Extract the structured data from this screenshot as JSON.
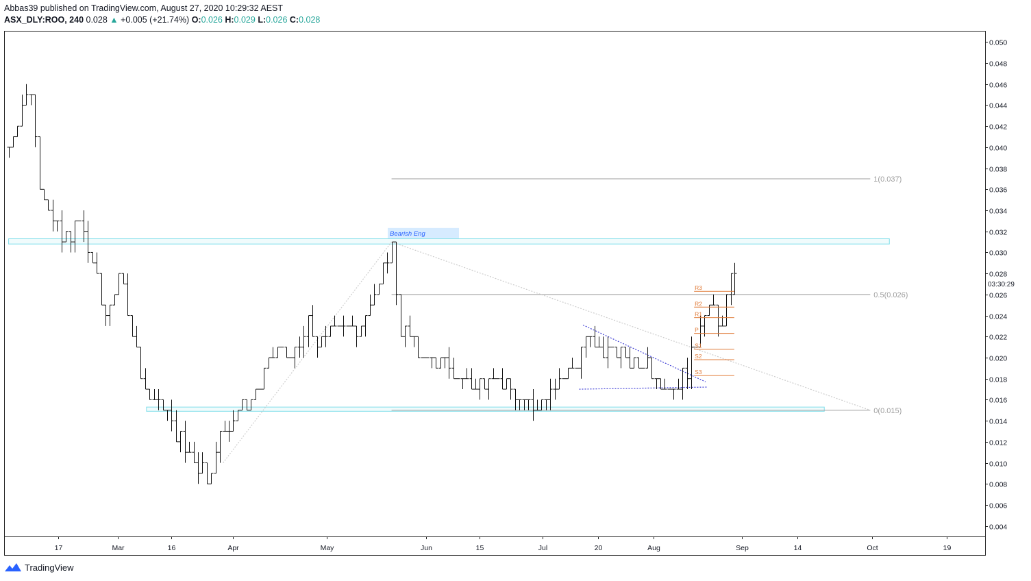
{
  "header": {
    "publisher_line": "Abbas39 published on TradingView.com, August 27, 2020 10:29:32 AEST",
    "symbol": "ASX_DLY:ROO, 240",
    "last": "0.028",
    "up_arrow": "▲",
    "change": "+0.005 (+21.74%)",
    "o_label": "O:",
    "o_value": "0.026",
    "h_label": "H:",
    "h_value": "0.029",
    "l_label": "L:",
    "l_value": "0.026",
    "c_label": "C:",
    "c_value": "0.028"
  },
  "footer": {
    "brand": "TradingView",
    "logo_icon": "tradingview-logo-icon"
  },
  "chart_data": {
    "type": "ohlc",
    "title": "ASX_DLY:ROO, 240",
    "ylim": [
      0.003,
      0.051
    ],
    "y_ticks": [
      "0.050",
      "0.048",
      "0.046",
      "0.044",
      "0.042",
      "0.040",
      "0.038",
      "0.036",
      "0.034",
      "0.032",
      "0.030",
      "0.028",
      "0.026",
      "0.024",
      "0.022",
      "0.020",
      "0.018",
      "0.016",
      "0.014",
      "0.012",
      "0.010",
      "0.008",
      "0.006",
      "0.004"
    ],
    "x_ticks": [
      "17",
      "Mar",
      "16",
      "Apr",
      "May",
      "Jun",
      "15",
      "Jul",
      "20",
      "Aug",
      "Sep",
      "14",
      "Oct",
      "19"
    ],
    "countdown": "03:30:29",
    "last_price": 0.028,
    "price_path": [
      [
        0.0,
        0.04
      ],
      [
        0.6,
        0.044
      ],
      [
        1.2,
        0.046
      ],
      [
        1.5,
        0.037
      ],
      [
        2.1,
        0.034
      ],
      [
        2.8,
        0.031
      ],
      [
        3.7,
        0.033
      ],
      [
        4.2,
        0.03
      ],
      [
        5.0,
        0.024
      ],
      [
        5.8,
        0.028
      ],
      [
        6.6,
        0.021
      ],
      [
        7.3,
        0.016
      ],
      [
        8.1,
        0.015
      ],
      [
        9.0,
        0.012
      ],
      [
        9.7,
        0.01
      ],
      [
        10.4,
        0.009
      ],
      [
        11.2,
        0.013
      ],
      [
        11.8,
        0.015
      ],
      [
        12.5,
        0.016
      ],
      [
        13.3,
        0.018
      ],
      [
        14.1,
        0.021
      ],
      [
        14.9,
        0.02
      ],
      [
        15.6,
        0.023
      ],
      [
        16.3,
        0.021
      ],
      [
        17.2,
        0.024
      ],
      [
        18.0,
        0.022
      ],
      [
        18.8,
        0.025
      ],
      [
        19.4,
        0.027
      ],
      [
        20.0,
        0.031
      ],
      [
        20.4,
        0.023
      ],
      [
        21.1,
        0.021
      ],
      [
        21.9,
        0.02
      ],
      [
        22.8,
        0.019
      ],
      [
        23.6,
        0.018
      ],
      [
        24.4,
        0.017
      ],
      [
        25.2,
        0.019
      ],
      [
        25.9,
        0.017
      ],
      [
        26.6,
        0.016
      ],
      [
        27.3,
        0.015
      ],
      [
        28.1,
        0.017
      ],
      [
        28.8,
        0.018
      ],
      [
        29.5,
        0.019
      ],
      [
        30.2,
        0.022
      ],
      [
        30.9,
        0.02
      ],
      [
        31.7,
        0.021
      ],
      [
        32.5,
        0.019
      ],
      [
        33.2,
        0.02
      ],
      [
        33.9,
        0.018
      ],
      [
        34.5,
        0.017
      ],
      [
        35.1,
        0.018
      ],
      [
        35.7,
        0.02
      ],
      [
        36.2,
        0.024
      ],
      [
        36.7,
        0.025
      ],
      [
        37.1,
        0.022
      ],
      [
        37.5,
        0.026
      ],
      [
        37.8,
        0.028
      ]
    ],
    "bar_spacing": 0.23,
    "candle_start": 0.0,
    "candle_end": 37.8,
    "horizontal_zones": [
      {
        "name": "resistance-zone",
        "from": 0.0,
        "to": 46.0,
        "low": 0.0308,
        "high": 0.0313,
        "color": "#80deea"
      },
      {
        "name": "support-zone",
        "from": 7.2,
        "to": 42.6,
        "low": 0.0149,
        "high": 0.0153,
        "color": "#80deea"
      }
    ],
    "fib": {
      "from": 20.0,
      "to": 45.0,
      "color": "#9e9e9e",
      "levels": [
        {
          "label": "1(0.037)",
          "value": 0.037
        },
        {
          "label": "0.5(0.026)",
          "value": 0.026
        },
        {
          "label": "0(0.015)",
          "value": 0.015
        }
      ]
    },
    "pivots": {
      "from": 35.8,
      "to": 37.9,
      "color": "#e07b39",
      "levels": [
        {
          "label": "R3",
          "value": 0.0263
        },
        {
          "label": "R2",
          "value": 0.0248
        },
        {
          "label": "R1",
          "value": 0.0238
        },
        {
          "label": "P",
          "value": 0.0223
        },
        {
          "label": "S1",
          "value": 0.0208
        },
        {
          "label": "S2",
          "value": 0.0198
        },
        {
          "label": "S3",
          "value": 0.0183
        }
      ]
    },
    "annotations": [
      {
        "label": "Bearish Eng",
        "x": 19.8,
        "y": 0.0318,
        "color": "#2962ff",
        "bg": "#d6ebff"
      }
    ],
    "trendlines": [
      {
        "name": "triangle-upper",
        "from": [
          30.0,
          0.0231
        ],
        "to": [
          36.4,
          0.0177
        ],
        "color": "#3f3fd6",
        "dotted": true
      },
      {
        "name": "triangle-lower",
        "from": [
          29.8,
          0.017
        ],
        "to": [
          36.5,
          0.0172
        ],
        "color": "#3f3fd6",
        "dotted": true
      },
      {
        "name": "fib-diagonal-up",
        "from": [
          11.2,
          0.01
        ],
        "to": [
          20.0,
          0.031
        ],
        "color": "#cccccc",
        "dotted": true
      },
      {
        "name": "fib-diagonal-down",
        "from": [
          20.0,
          0.031
        ],
        "to": [
          45.0,
          0.015
        ],
        "color": "#cccccc",
        "dotted": true
      }
    ],
    "x_tick_positions": [
      2.6,
      5.7,
      8.5,
      11.7,
      16.6,
      21.8,
      24.6,
      27.9,
      30.8,
      33.7,
      38.3,
      41.2,
      45.1,
      49.0
    ],
    "x_range": [
      -0.2,
      51.0
    ]
  }
}
